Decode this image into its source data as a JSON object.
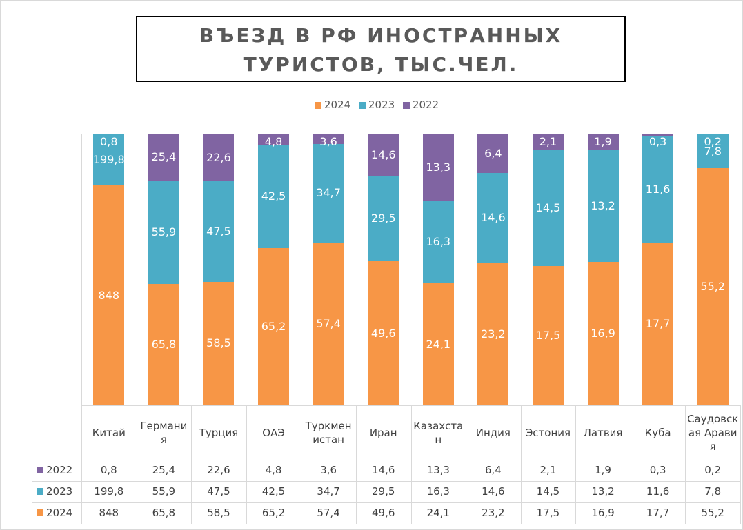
{
  "chart_data": {
    "type": "bar",
    "stacking": "percent",
    "title": "ВЪЕЗД В РФ ИНОСТРАННЫХ ТУРИСТОВ, ТЫС.ЧЕЛ.",
    "categories": [
      "Китай",
      "Германия",
      "Турция",
      "ОАЭ",
      "Туркменистан",
      "Иран",
      "Казахстан",
      "Индия",
      "Эстония",
      "Латвия",
      "Куба",
      "Саудовская Аравия"
    ],
    "series": [
      {
        "name": "2024",
        "color": "#f79646",
        "values": [
          848,
          65.8,
          58.5,
          65.2,
          57.4,
          49.6,
          24.1,
          23.2,
          17.5,
          16.9,
          17.7,
          55.2
        ],
        "value_labels": [
          "848",
          "65,8",
          "58,5",
          "65,2",
          "57,4",
          "49,6",
          "24,1",
          "23,2",
          "17,5",
          "16,9",
          "17,7",
          "55,2"
        ]
      },
      {
        "name": "2023",
        "color": "#4bacc6",
        "values": [
          199.8,
          55.9,
          47.5,
          42.5,
          34.7,
          29.5,
          16.3,
          14.6,
          14.5,
          13.2,
          11.6,
          7.8
        ],
        "value_labels": [
          "199,8",
          "55,9",
          "47,5",
          "42,5",
          "34,7",
          "29,5",
          "16,3",
          "14,6",
          "14,5",
          "13,2",
          "11,6",
          "7,8"
        ]
      },
      {
        "name": "2022",
        "color": "#8064a2",
        "values": [
          0.8,
          25.4,
          22.6,
          4.8,
          3.6,
          14.6,
          13.3,
          6.4,
          2.1,
          1.9,
          0.3,
          0.2
        ],
        "value_labels": [
          "0,8",
          "25,4",
          "22,6",
          "4,8",
          "3,6",
          "14,6",
          "13,3",
          "6,4",
          "2,1",
          "1,9",
          "0,3",
          "0,2"
        ]
      }
    ],
    "legend": "top",
    "data_table": true
  }
}
